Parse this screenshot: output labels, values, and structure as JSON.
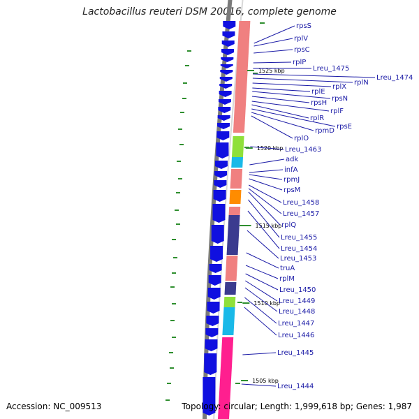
{
  "title": "Lactobacillus reuteri DSM 20016, complete genome",
  "footer": {
    "accession": "Accession: NC_009513",
    "summary": "Topology: circular; Length: 1,999,618 bp; Genes: 1,987"
  },
  "colors": {
    "backbone": "#7a7a7a",
    "cds_forward": "#1010e0",
    "gc_skew": "#2f8f2f",
    "label_line": "#1a1aa6",
    "rrna_rpl": "#f08080",
    "lime": "#8fe03a",
    "cyan": "#19b9e8",
    "orange": "#ff8c00",
    "slate": "#3b3b8f",
    "magenta": "#ff1f8f"
  },
  "kbp_ticks": [
    "1525 kbp",
    "1520 kbp",
    "1515 kbp",
    "1510 kbp",
    "1505 kbp"
  ],
  "gene_labels": [
    "rpsS",
    "rplV",
    "rpsC",
    "rplP",
    "Lreu_1475",
    "Lreu_1474",
    "rplN",
    "rplX",
    "rplE",
    "rpsN",
    "rpsH",
    "rplF",
    "rplR",
    "rpsE",
    "rpmD",
    "rplO",
    "Lreu_1463",
    "adk",
    "infA",
    "rpmJ",
    "rpsM",
    "Lreu_1458",
    "Lreu_1457",
    "rplQ",
    "Lreu_1455",
    "Lreu_1454",
    "Lreu_1453",
    "truA",
    "rplM",
    "Lreu_1450",
    "Lreu_1449",
    "Lreu_1448",
    "Lreu_1447",
    "Lreu_1446",
    "Lreu_1445",
    "Lreu_1444"
  ]
}
